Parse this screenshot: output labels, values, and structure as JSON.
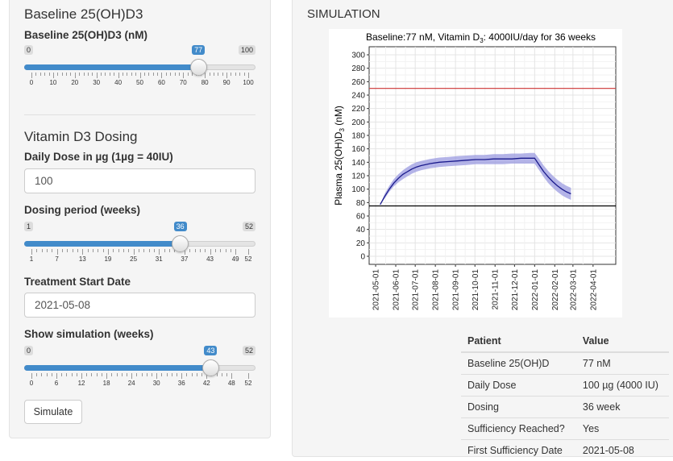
{
  "sidebar": {
    "baseline_section_title": "Baseline 25(OH)D3",
    "baseline_label": "Baseline 25(OH)D3 (nM)",
    "baseline_slider": {
      "min": 0,
      "max": 100,
      "value": 77,
      "min_label": "0",
      "max_label": "100",
      "value_label": "77",
      "ticks": [
        0,
        10,
        20,
        30,
        40,
        50,
        60,
        70,
        80,
        90,
        100
      ],
      "tick_labels": [
        "0",
        "10",
        "20",
        "30",
        "40",
        "50",
        "60",
        "70",
        "80",
        "90",
        "100"
      ]
    },
    "dosing_section_title": "Vitamin D3 Dosing",
    "daily_dose_label": "Daily Dose in µg (1µg = 40IU)",
    "daily_dose_value": "100",
    "period_label": "Dosing period (weeks)",
    "period_slider": {
      "min": 1,
      "max": 52,
      "value": 36,
      "min_label": "1",
      "max_label": "52",
      "value_label": "36",
      "ticks": [
        1,
        7,
        13,
        19,
        25,
        31,
        37,
        43,
        49,
        52
      ],
      "tick_labels": [
        "1",
        "7",
        "13",
        "19",
        "25",
        "31",
        "37",
        "43",
        "49",
        "52"
      ]
    },
    "start_date_label": "Treatment Start Date",
    "start_date_value": "2021-05-08",
    "show_label": "Show simulation (weeks)",
    "show_slider": {
      "min": 0,
      "max": 52,
      "value": 43,
      "min_label": "0",
      "max_label": "52",
      "value_label": "43",
      "ticks": [
        0,
        6,
        12,
        18,
        24,
        30,
        36,
        42,
        48,
        52
      ],
      "tick_labels": [
        "0",
        "6",
        "12",
        "18",
        "24",
        "30",
        "36",
        "42",
        "48",
        "52"
      ]
    },
    "simulate_button": "Simulate"
  },
  "main": {
    "title": "SIMULATION",
    "table": {
      "headers": [
        "Patient",
        "Value"
      ],
      "rows": [
        [
          "Baseline 25(OH)D",
          "77 nM"
        ],
        [
          "Daily Dose",
          "100 µg (4000 IU)"
        ],
        [
          "Dosing",
          "36 week"
        ],
        [
          "Sufficiency Reached?",
          "Yes"
        ],
        [
          "First Sufficiency Date",
          "2021-05-08"
        ]
      ]
    }
  },
  "chart_data": {
    "type": "line",
    "title_parts": [
      "Baseline:77 nM, Vitamin D",
      "3",
      ": 4000IU/day for 36 weeks"
    ],
    "ylabel_parts": [
      "Plasma 25(OH)D",
      "3",
      " (nM)"
    ],
    "xlabel": "",
    "x_tick_labels": [
      "2021-05-01",
      "2021-06-01",
      "2021-07-01",
      "2021-08-01",
      "2021-09-01",
      "2021-10-01",
      "2021-11-01",
      "2021-12-01",
      "2022-01-01",
      "2022-02-01",
      "2022-03-01",
      "2022-04-01"
    ],
    "x_tick_days": [
      0,
      31,
      61,
      92,
      123,
      153,
      184,
      214,
      245,
      276,
      304,
      335
    ],
    "xlim_days": [
      -10,
      370
    ],
    "y_ticks": [
      0,
      20,
      40,
      60,
      80,
      100,
      120,
      140,
      160,
      180,
      200,
      220,
      240,
      260,
      280,
      300
    ],
    "ylim": [
      -12,
      312
    ],
    "grid": true,
    "reference_lines": [
      {
        "y": 250,
        "color": "#cc3333"
      },
      {
        "y": 75,
        "color": "#000000"
      }
    ],
    "line_color": "#1a1a8c",
    "band_color": "#9b9be0",
    "series": [
      {
        "x_days": [
          7,
          14,
          21,
          28,
          35,
          42,
          49,
          56,
          63,
          70,
          84,
          98,
          112,
          126,
          140,
          154,
          168,
          182,
          196,
          210,
          224,
          238,
          245,
          252,
          259,
          266,
          273,
          280,
          287,
          294,
          301
        ],
        "y": [
          77,
          89,
          100,
          109,
          116,
          122,
          126,
          130,
          133,
          135,
          138,
          140,
          141,
          142,
          143,
          144,
          144,
          145,
          145,
          145,
          146,
          146,
          146,
          136,
          126,
          118,
          111,
          105,
          100,
          96,
          93
        ],
        "y_lower": [
          77,
          86,
          96,
          104,
          110,
          115,
          119,
          123,
          126,
          128,
          131,
          133,
          134,
          135,
          136,
          137,
          137,
          137,
          137,
          138,
          138,
          138,
          138,
          128,
          118,
          109,
          102,
          96,
          91,
          87,
          84
        ],
        "y_upper": [
          77,
          93,
          105,
          115,
          122,
          128,
          133,
          137,
          140,
          142,
          145,
          147,
          148,
          149,
          150,
          151,
          151,
          152,
          152,
          153,
          153,
          154,
          154,
          145,
          135,
          127,
          120,
          114,
          109,
          105,
          102
        ]
      }
    ]
  }
}
